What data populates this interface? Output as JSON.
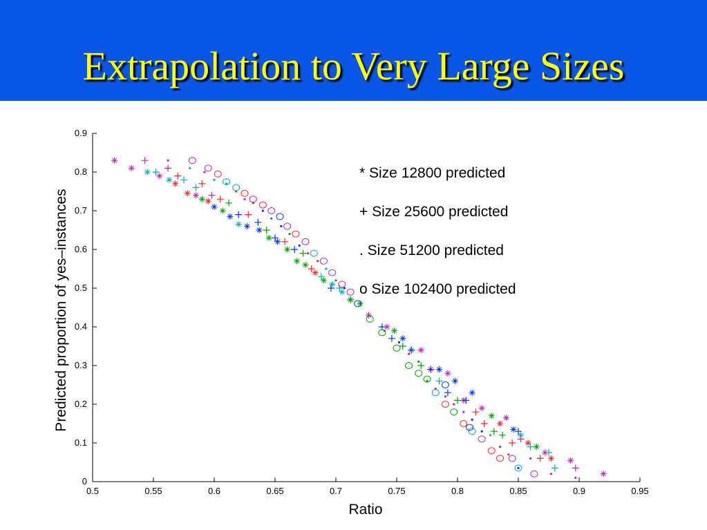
{
  "slide": {
    "title": "Extrapolation to Very Large Sizes"
  },
  "colors": {
    "title_bg": "#0a56e6",
    "title_text": "#ffff00"
  },
  "chart_data": {
    "type": "scatter",
    "title": "",
    "xlabel": "Ratio",
    "ylabel": "Predicted proportion of yes–instances",
    "xlim": [
      0.5,
      0.95
    ],
    "ylim": [
      0,
      0.9
    ],
    "xticks": [
      0.5,
      0.55,
      0.6,
      0.65,
      0.7,
      0.75,
      0.8,
      0.85,
      0.9,
      0.95
    ],
    "xtick_labels": [
      "0.5",
      "0.55",
      "0.6",
      "0.65",
      "0.7",
      "0.75",
      "0.8",
      "0.85",
      "0.9",
      "0.95"
    ],
    "yticks": [
      0,
      0.1,
      0.2,
      0.3,
      0.4,
      0.5,
      0.6,
      0.7,
      0.8,
      0.9
    ],
    "ytick_labels": [
      "0",
      "0.1",
      "0.2",
      "0.3",
      "0.4",
      "0.5",
      "0.6",
      "0.7",
      "0.8",
      "0.9"
    ],
    "grid": false,
    "legend": {
      "placement": "top-right",
      "entries": [
        "* Size 12800 predicted",
        "+ Size 25600 predicted",
        ". Size 51200 predicted",
        "o Size 102400 predicted"
      ]
    },
    "series": [
      {
        "marker": "star",
        "points": [
          {
            "x": 0.518,
            "y": 0.83,
            "c": "#c020c0"
          },
          {
            "x": 0.532,
            "y": 0.81,
            "c": "#c020c0"
          },
          {
            "x": 0.545,
            "y": 0.8,
            "c": "#00b0b0"
          },
          {
            "x": 0.555,
            "y": 0.79,
            "c": "#c020c0"
          },
          {
            "x": 0.563,
            "y": 0.78,
            "c": "#00b0b0"
          },
          {
            "x": 0.568,
            "y": 0.77,
            "c": "#ff2020"
          },
          {
            "x": 0.578,
            "y": 0.745,
            "c": "#ff2020"
          },
          {
            "x": 0.585,
            "y": 0.74,
            "c": "#c020c0"
          },
          {
            "x": 0.59,
            "y": 0.73,
            "c": "#00a000"
          },
          {
            "x": 0.595,
            "y": 0.725,
            "c": "#ff2020"
          },
          {
            "x": 0.6,
            "y": 0.71,
            "c": "#0030ff"
          },
          {
            "x": 0.607,
            "y": 0.7,
            "c": "#00a000"
          },
          {
            "x": 0.613,
            "y": 0.685,
            "c": "#0030ff"
          },
          {
            "x": 0.62,
            "y": 0.665,
            "c": "#00b0b0"
          },
          {
            "x": 0.627,
            "y": 0.66,
            "c": "#0030ff"
          },
          {
            "x": 0.637,
            "y": 0.65,
            "c": "#0030ff"
          },
          {
            "x": 0.645,
            "y": 0.63,
            "c": "#00a000"
          },
          {
            "x": 0.652,
            "y": 0.62,
            "c": "#0030ff"
          },
          {
            "x": 0.66,
            "y": 0.6,
            "c": "#00a000"
          },
          {
            "x": 0.668,
            "y": 0.57,
            "c": "#00a000"
          },
          {
            "x": 0.675,
            "y": 0.56,
            "c": "#00a000"
          },
          {
            "x": 0.683,
            "y": 0.54,
            "c": "#ff2020"
          },
          {
            "x": 0.69,
            "y": 0.52,
            "c": "#00a000"
          },
          {
            "x": 0.697,
            "y": 0.51,
            "c": "#00b0b0"
          },
          {
            "x": 0.705,
            "y": 0.49,
            "c": "#00b0b0"
          },
          {
            "x": 0.712,
            "y": 0.47,
            "c": "#00a000"
          },
          {
            "x": 0.72,
            "y": 0.46,
            "c": "#00a000"
          },
          {
            "x": 0.727,
            "y": 0.43,
            "c": "#c020c0"
          },
          {
            "x": 0.742,
            "y": 0.4,
            "c": "#c020c0"
          },
          {
            "x": 0.748,
            "y": 0.39,
            "c": "#00a000"
          },
          {
            "x": 0.755,
            "y": 0.37,
            "c": "#0030ff"
          },
          {
            "x": 0.762,
            "y": 0.34,
            "c": "#00a000"
          },
          {
            "x": 0.77,
            "y": 0.34,
            "c": "#c020c0"
          },
          {
            "x": 0.778,
            "y": 0.29,
            "c": "#ff2020"
          },
          {
            "x": 0.785,
            "y": 0.29,
            "c": "#0030ff"
          },
          {
            "x": 0.792,
            "y": 0.28,
            "c": "#c020c0"
          },
          {
            "x": 0.798,
            "y": 0.26,
            "c": "#0030ff"
          },
          {
            "x": 0.805,
            "y": 0.21,
            "c": "#c020c0"
          },
          {
            "x": 0.812,
            "y": 0.23,
            "c": "#0030ff"
          },
          {
            "x": 0.82,
            "y": 0.19,
            "c": "#c020c0"
          },
          {
            "x": 0.828,
            "y": 0.17,
            "c": "#00a000"
          },
          {
            "x": 0.835,
            "y": 0.15,
            "c": "#ff2020"
          },
          {
            "x": 0.84,
            "y": 0.165,
            "c": "#c020c0"
          },
          {
            "x": 0.846,
            "y": 0.135,
            "c": "#0030ff"
          },
          {
            "x": 0.852,
            "y": 0.12,
            "c": "#00b0b0"
          },
          {
            "x": 0.858,
            "y": 0.1,
            "c": "#ff2020"
          },
          {
            "x": 0.865,
            "y": 0.09,
            "c": "#00a000"
          },
          {
            "x": 0.872,
            "y": 0.075,
            "c": "#c020c0"
          },
          {
            "x": 0.877,
            "y": 0.06,
            "c": "#ff2020"
          },
          {
            "x": 0.893,
            "y": 0.055,
            "c": "#c020c0"
          },
          {
            "x": 0.92,
            "y": 0.02,
            "c": "#c020c0"
          }
        ]
      },
      {
        "marker": "plus",
        "points": [
          {
            "x": 0.543,
            "y": 0.83,
            "c": "#c020c0"
          },
          {
            "x": 0.552,
            "y": 0.8,
            "c": "#00b0b0"
          },
          {
            "x": 0.562,
            "y": 0.81,
            "c": "#c020c0"
          },
          {
            "x": 0.57,
            "y": 0.79,
            "c": "#ff2020"
          },
          {
            "x": 0.575,
            "y": 0.78,
            "c": "#00b0b0"
          },
          {
            "x": 0.585,
            "y": 0.76,
            "c": "#00b0b0"
          },
          {
            "x": 0.59,
            "y": 0.77,
            "c": "#ff2020"
          },
          {
            "x": 0.598,
            "y": 0.74,
            "c": "#c020c0"
          },
          {
            "x": 0.605,
            "y": 0.73,
            "c": "#ff2020"
          },
          {
            "x": 0.612,
            "y": 0.72,
            "c": "#00a000"
          },
          {
            "x": 0.62,
            "y": 0.69,
            "c": "#0030ff"
          },
          {
            "x": 0.628,
            "y": 0.69,
            "c": "#ff2020"
          },
          {
            "x": 0.636,
            "y": 0.67,
            "c": "#0030ff"
          },
          {
            "x": 0.643,
            "y": 0.65,
            "c": "#00a000"
          },
          {
            "x": 0.65,
            "y": 0.63,
            "c": "#0030ff"
          },
          {
            "x": 0.658,
            "y": 0.62,
            "c": "#ff2020"
          },
          {
            "x": 0.666,
            "y": 0.6,
            "c": "#0030ff"
          },
          {
            "x": 0.673,
            "y": 0.59,
            "c": "#00a000"
          },
          {
            "x": 0.68,
            "y": 0.55,
            "c": "#ff2020"
          },
          {
            "x": 0.688,
            "y": 0.53,
            "c": "#00b0b0"
          },
          {
            "x": 0.696,
            "y": 0.5,
            "c": "#0030ff"
          },
          {
            "x": 0.703,
            "y": 0.5,
            "c": "#00b0b0"
          },
          {
            "x": 0.712,
            "y": 0.47,
            "c": "#00a000"
          },
          {
            "x": 0.738,
            "y": 0.4,
            "c": "#0030ff"
          },
          {
            "x": 0.746,
            "y": 0.37,
            "c": "#0030ff"
          },
          {
            "x": 0.755,
            "y": 0.35,
            "c": "#00a000"
          },
          {
            "x": 0.762,
            "y": 0.34,
            "c": "#0030ff"
          },
          {
            "x": 0.77,
            "y": 0.3,
            "c": "#00a000"
          },
          {
            "x": 0.778,
            "y": 0.29,
            "c": "#0030ff"
          },
          {
            "x": 0.785,
            "y": 0.26,
            "c": "#00b0b0"
          },
          {
            "x": 0.792,
            "y": 0.23,
            "c": "#0030ff"
          },
          {
            "x": 0.8,
            "y": 0.21,
            "c": "#00a000"
          },
          {
            "x": 0.807,
            "y": 0.21,
            "c": "#0030ff"
          },
          {
            "x": 0.815,
            "y": 0.18,
            "c": "#ff2020"
          },
          {
            "x": 0.822,
            "y": 0.15,
            "c": "#ff2020"
          },
          {
            "x": 0.83,
            "y": 0.13,
            "c": "#00a000"
          },
          {
            "x": 0.837,
            "y": 0.12,
            "c": "#00a000"
          },
          {
            "x": 0.845,
            "y": 0.1,
            "c": "#ff2020"
          },
          {
            "x": 0.852,
            "y": 0.11,
            "c": "#c020c0"
          },
          {
            "x": 0.86,
            "y": 0.09,
            "c": "#00b0b0"
          },
          {
            "x": 0.868,
            "y": 0.06,
            "c": "#ff2020"
          },
          {
            "x": 0.875,
            "y": 0.075,
            "c": "#00b0b0"
          },
          {
            "x": 0.88,
            "y": 0.035,
            "c": "#00b0b0"
          },
          {
            "x": 0.897,
            "y": 0.035,
            "c": "#c020c0"
          },
          {
            "x": 0.85,
            "y": 0.13,
            "c": "#0030ff"
          }
        ]
      },
      {
        "marker": "dot",
        "points": [
          {
            "x": 0.562,
            "y": 0.83,
            "c": "#c020c0"
          },
          {
            "x": 0.58,
            "y": 0.81,
            "c": "#00b0b0"
          },
          {
            "x": 0.592,
            "y": 0.8,
            "c": "#c020c0"
          },
          {
            "x": 0.6,
            "y": 0.78,
            "c": "#00b0b0"
          },
          {
            "x": 0.61,
            "y": 0.77,
            "c": "#00b0b0"
          },
          {
            "x": 0.618,
            "y": 0.75,
            "c": "#ff2020"
          },
          {
            "x": 0.625,
            "y": 0.73,
            "c": "#c020c0"
          },
          {
            "x": 0.632,
            "y": 0.72,
            "c": "#ff2020"
          },
          {
            "x": 0.64,
            "y": 0.7,
            "c": "#0030ff"
          },
          {
            "x": 0.647,
            "y": 0.68,
            "c": "#00a000"
          },
          {
            "x": 0.655,
            "y": 0.66,
            "c": "#0030ff"
          },
          {
            "x": 0.662,
            "y": 0.64,
            "c": "#00a000"
          },
          {
            "x": 0.67,
            "y": 0.61,
            "c": "#0030ff"
          },
          {
            "x": 0.677,
            "y": 0.59,
            "c": "#ff2020"
          },
          {
            "x": 0.685,
            "y": 0.57,
            "c": "#ff2020"
          },
          {
            "x": 0.692,
            "y": 0.55,
            "c": "#00b0b0"
          },
          {
            "x": 0.7,
            "y": 0.52,
            "c": "#00a000"
          },
          {
            "x": 0.707,
            "y": 0.5,
            "c": "#0030ff"
          },
          {
            "x": 0.74,
            "y": 0.39,
            "c": "#00a000"
          },
          {
            "x": 0.752,
            "y": 0.36,
            "c": "#0030ff"
          },
          {
            "x": 0.76,
            "y": 0.33,
            "c": "#ff2020"
          },
          {
            "x": 0.768,
            "y": 0.31,
            "c": "#00a000"
          },
          {
            "x": 0.775,
            "y": 0.26,
            "c": "#00a000"
          },
          {
            "x": 0.782,
            "y": 0.24,
            "c": "#ff2020"
          },
          {
            "x": 0.79,
            "y": 0.22,
            "c": "#00a000"
          },
          {
            "x": 0.797,
            "y": 0.2,
            "c": "#ff2020"
          },
          {
            "x": 0.805,
            "y": 0.18,
            "c": "#c020c0"
          },
          {
            "x": 0.812,
            "y": 0.16,
            "c": "#0030ff"
          },
          {
            "x": 0.82,
            "y": 0.13,
            "c": "#0030ff"
          },
          {
            "x": 0.827,
            "y": 0.12,
            "c": "#00b0b0"
          },
          {
            "x": 0.835,
            "y": 0.09,
            "c": "#c020c0"
          },
          {
            "x": 0.842,
            "y": 0.07,
            "c": "#ff2020"
          },
          {
            "x": 0.85,
            "y": 0.035,
            "c": "#0030ff"
          },
          {
            "x": 0.86,
            "y": 0.06,
            "c": "#c020c0"
          },
          {
            "x": 0.877,
            "y": 0.02,
            "c": "#c020c0"
          },
          {
            "x": 0.897,
            "y": 0.01,
            "c": "#c020c0"
          }
        ]
      },
      {
        "marker": "circle",
        "points": [
          {
            "x": 0.582,
            "y": 0.83,
            "c": "#c020c0"
          },
          {
            "x": 0.595,
            "y": 0.81,
            "c": "#c020c0"
          },
          {
            "x": 0.603,
            "y": 0.795,
            "c": "#ff2020"
          },
          {
            "x": 0.61,
            "y": 0.775,
            "c": "#00b0b0"
          },
          {
            "x": 0.618,
            "y": 0.76,
            "c": "#00b0b0"
          },
          {
            "x": 0.625,
            "y": 0.745,
            "c": "#ff2020"
          },
          {
            "x": 0.632,
            "y": 0.73,
            "c": "#c020c0"
          },
          {
            "x": 0.64,
            "y": 0.715,
            "c": "#ff2020"
          },
          {
            "x": 0.647,
            "y": 0.7,
            "c": "#c020c0"
          },
          {
            "x": 0.654,
            "y": 0.685,
            "c": "#0030ff"
          },
          {
            "x": 0.66,
            "y": 0.66,
            "c": "#c020c0"
          },
          {
            "x": 0.667,
            "y": 0.64,
            "c": "#ff2020"
          },
          {
            "x": 0.675,
            "y": 0.62,
            "c": "#c020c0"
          },
          {
            "x": 0.682,
            "y": 0.59,
            "c": "#00b0b0"
          },
          {
            "x": 0.69,
            "y": 0.57,
            "c": "#c020c0"
          },
          {
            "x": 0.697,
            "y": 0.54,
            "c": "#c020c0"
          },
          {
            "x": 0.705,
            "y": 0.51,
            "c": "#ff2020"
          },
          {
            "x": 0.712,
            "y": 0.49,
            "c": "#c020c0"
          },
          {
            "x": 0.718,
            "y": 0.46,
            "c": "#0030ff"
          },
          {
            "x": 0.728,
            "y": 0.42,
            "c": "#00a000"
          },
          {
            "x": 0.738,
            "y": 0.385,
            "c": "#00a000"
          },
          {
            "x": 0.75,
            "y": 0.345,
            "c": "#00a000"
          },
          {
            "x": 0.76,
            "y": 0.3,
            "c": "#00a000"
          },
          {
            "x": 0.768,
            "y": 0.28,
            "c": "#00a000"
          },
          {
            "x": 0.775,
            "y": 0.265,
            "c": "#00a000"
          },
          {
            "x": 0.782,
            "y": 0.23,
            "c": "#00b0b0"
          },
          {
            "x": 0.79,
            "y": 0.2,
            "c": "#ff2020"
          },
          {
            "x": 0.797,
            "y": 0.18,
            "c": "#00a000"
          },
          {
            "x": 0.805,
            "y": 0.15,
            "c": "#ff2020"
          },
          {
            "x": 0.812,
            "y": 0.13,
            "c": "#00b0b0"
          },
          {
            "x": 0.82,
            "y": 0.11,
            "c": "#c020c0"
          },
          {
            "x": 0.828,
            "y": 0.08,
            "c": "#ff2020"
          },
          {
            "x": 0.835,
            "y": 0.06,
            "c": "#ff2020"
          },
          {
            "x": 0.845,
            "y": 0.06,
            "c": "#c020c0"
          },
          {
            "x": 0.85,
            "y": 0.035,
            "c": "#00b0b0"
          },
          {
            "x": 0.863,
            "y": 0.02,
            "c": "#c020c0"
          },
          {
            "x": 0.81,
            "y": 0.14,
            "c": "#0030ff"
          },
          {
            "x": 0.79,
            "y": 0.25,
            "c": "#0030ff"
          }
        ]
      }
    ]
  }
}
